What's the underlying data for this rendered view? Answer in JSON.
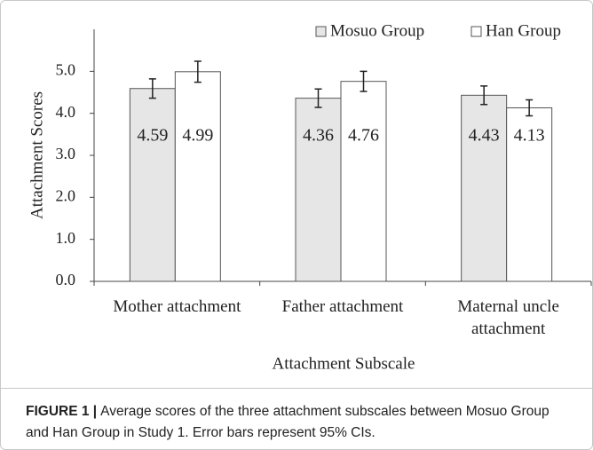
{
  "chart_data": {
    "type": "bar",
    "categories": [
      "Mother attachment",
      "Father attachment",
      "Maternal uncle attachment"
    ],
    "series": [
      {
        "name": "Mosuo Group",
        "color": "#e6e6e6",
        "values": [
          4.59,
          4.36,
          4.43
        ],
        "errors": [
          0.23,
          0.22,
          0.22
        ]
      },
      {
        "name": "Han Group",
        "color": "#ffffff",
        "values": [
          4.99,
          4.76,
          4.13
        ],
        "errors": [
          0.25,
          0.24,
          0.19
        ]
      }
    ],
    "ylim": [
      0,
      6
    ],
    "yticks": [
      {
        "value": 0,
        "label": "0.0"
      },
      {
        "value": 1,
        "label": "1.0"
      },
      {
        "value": 2,
        "label": "2.0"
      },
      {
        "value": 3,
        "label": "3.0"
      },
      {
        "value": 4,
        "label": "4.0"
      },
      {
        "value": 5,
        "label": "5.0"
      }
    ],
    "ylabel": "Attachment Scores",
    "xlabel": "Attachment Subscale",
    "legend": "top-right",
    "grid": false
  },
  "caption": {
    "label": "FIGURE 1 |",
    "text": "Average scores of the three attachment subscales between Mosuo Group and Han Group in Study 1. Error bars represent 95% CIs."
  }
}
